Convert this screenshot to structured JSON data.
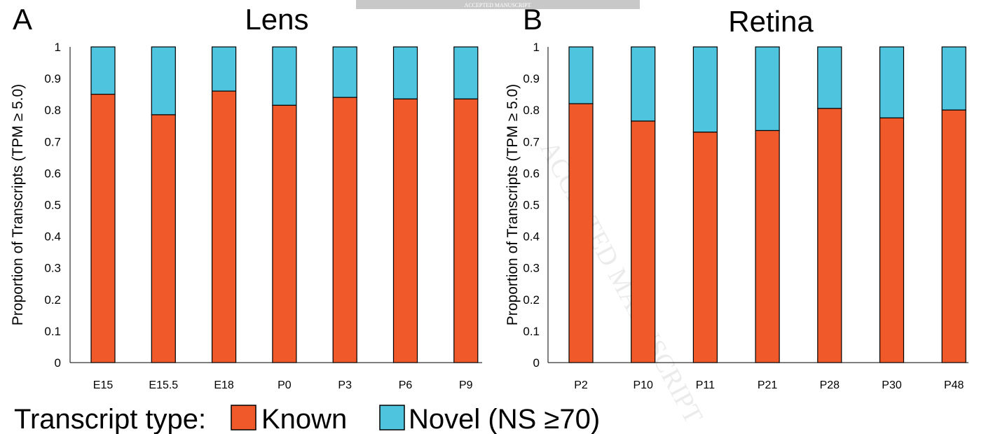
{
  "banner": "ACCEPTED MANUSCRIPT",
  "watermark": "ACCEPTED MANUSCRIPT",
  "legend": {
    "title": "Transcript type:",
    "items": [
      {
        "label": "Known",
        "color": "#F05A2A"
      },
      {
        "label": "Novel (NS ≥70)",
        "color": "#4FC4DE"
      }
    ]
  },
  "colors": {
    "known": "#F05A2A",
    "novel": "#4FC4DE",
    "outline": "#000000"
  },
  "chart_data": [
    {
      "type": "bar",
      "stacked": true,
      "panel_label": "A",
      "title": "Lens",
      "ylabel": "Proportion of Transcripts (TPM ≥ 5.0)",
      "xlabel": "",
      "ylim": [
        0,
        1
      ],
      "yticks": [
        0,
        0.1,
        0.2,
        0.3,
        0.4,
        0.5,
        0.6,
        0.7,
        0.8,
        0.9,
        1
      ],
      "ytick_labels": [
        "0",
        "0.1",
        "0.2",
        "0.3",
        "0.4",
        "0.5",
        "0.6",
        "0.7",
        "0.8",
        "0.9",
        "1"
      ],
      "categories": [
        "E15",
        "E15.5",
        "E18",
        "P0",
        "P3",
        "P6",
        "P9"
      ],
      "series": [
        {
          "name": "Known",
          "values": [
            0.85,
            0.785,
            0.86,
            0.815,
            0.84,
            0.835,
            0.835
          ]
        },
        {
          "name": "Novel (NS ≥70)",
          "values": [
            0.15,
            0.215,
            0.14,
            0.185,
            0.16,
            0.165,
            0.165
          ]
        }
      ]
    },
    {
      "type": "bar",
      "stacked": true,
      "panel_label": "B",
      "title": "Retina",
      "ylabel": "Proportion of Transcripts (TPM ≥ 5.0)",
      "xlabel": "",
      "ylim": [
        0,
        1
      ],
      "yticks": [
        0,
        0.1,
        0.2,
        0.3,
        0.4,
        0.5,
        0.6,
        0.7,
        0.8,
        0.9,
        1
      ],
      "ytick_labels": [
        "0",
        "0.1",
        "0.2",
        "0.3",
        "0.4",
        "0.5",
        "0.6",
        "0.7",
        "0.8",
        "0.9",
        "1"
      ],
      "categories": [
        "P2",
        "P10",
        "P11",
        "P21",
        "P28",
        "P30",
        "P48"
      ],
      "series": [
        {
          "name": "Known",
          "values": [
            0.82,
            0.765,
            0.73,
            0.735,
            0.805,
            0.775,
            0.8
          ]
        },
        {
          "name": "Novel (NS ≥70)",
          "values": [
            0.18,
            0.235,
            0.27,
            0.265,
            0.195,
            0.225,
            0.2
          ]
        }
      ]
    }
  ]
}
